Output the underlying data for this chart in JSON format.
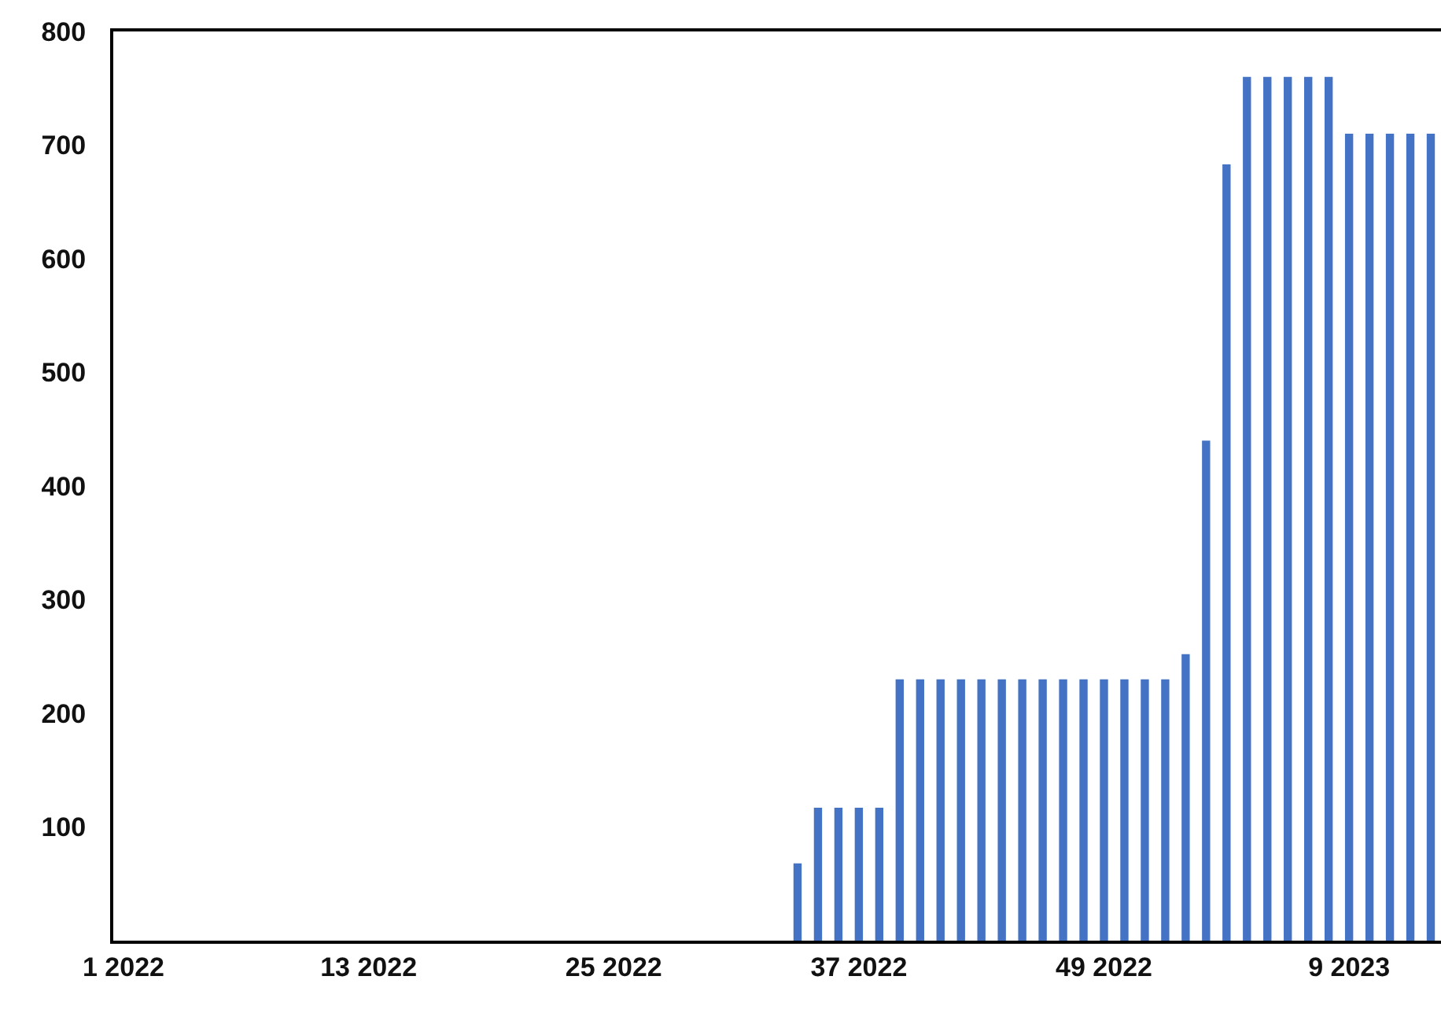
{
  "chart_data": {
    "type": "bar",
    "categories": [
      "1 2022",
      null,
      null,
      null,
      null,
      null,
      null,
      null,
      null,
      null,
      null,
      null,
      "13 2022",
      null,
      null,
      null,
      null,
      null,
      null,
      null,
      null,
      null,
      null,
      null,
      "25 2022",
      null,
      null,
      null,
      null,
      null,
      null,
      null,
      null,
      null,
      null,
      null,
      "37 2022",
      null,
      null,
      null,
      null,
      null,
      null,
      null,
      null,
      null,
      null,
      null,
      "49 2022",
      null,
      null,
      null,
      null,
      null,
      null,
      null,
      null,
      null,
      null,
      null,
      "9 2023",
      null,
      null,
      null,
      null
    ],
    "values": [
      null,
      null,
      null,
      null,
      null,
      null,
      null,
      null,
      null,
      null,
      null,
      null,
      null,
      null,
      null,
      null,
      null,
      null,
      null,
      null,
      null,
      null,
      null,
      null,
      null,
      null,
      null,
      null,
      null,
      null,
      null,
      null,
      null,
      68,
      117,
      117,
      117,
      117,
      230,
      230,
      230,
      230,
      230,
      230,
      230,
      230,
      230,
      230,
      230,
      230,
      230,
      230,
      252,
      440,
      683,
      760,
      760,
      760,
      760,
      760,
      710,
      710,
      710,
      710,
      710
    ],
    "color": "#4472c4",
    "ylim": [
      0,
      800
    ],
    "yticks": [
      100,
      200,
      300,
      400,
      500,
      600,
      700,
      800
    ],
    "grid": false
  }
}
